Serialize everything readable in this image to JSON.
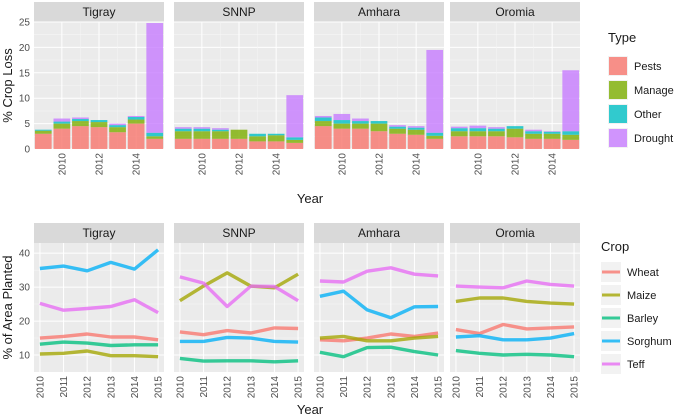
{
  "chart_data": [
    {
      "type": "bar",
      "stacked": true,
      "facet_by": "region",
      "panels": [
        "Tigray",
        "SNNP",
        "Amhara",
        "Oromia"
      ],
      "xlabel": "Year",
      "ylabel": "% Crop Loss",
      "x_ticks": [
        2010,
        2012,
        2014
      ],
      "y_ticks": [
        0,
        5,
        10,
        15,
        20,
        25
      ],
      "ylim": [
        0,
        25
      ],
      "xlim": [
        2008.5,
        2015.5
      ],
      "legend_title": "Type",
      "legend_position": "right",
      "series": [
        {
          "name": "Pests",
          "color": "#f8766d"
        },
        {
          "name": "Manage",
          "color": "#7cae00"
        },
        {
          "name": "Other",
          "color": "#00bfc4"
        },
        {
          "name": "Drought",
          "color": "#c77cff"
        }
      ],
      "years": [
        2009,
        2010,
        2011,
        2012,
        2013,
        2014,
        2015
      ],
      "values": {
        "Tigray": {
          "Pests": [
            3.0,
            4.0,
            4.5,
            4.3,
            3.3,
            5.0,
            2.0
          ],
          "Manage": [
            0.6,
            1.0,
            1.0,
            1.0,
            1.0,
            0.8,
            0.5
          ],
          "Other": [
            0.2,
            0.4,
            0.4,
            0.4,
            0.4,
            0.5,
            0.7
          ],
          "Drought": [
            0.0,
            0.6,
            0.3,
            0.0,
            0.3,
            0.2,
            21.6
          ]
        },
        "SNNP": {
          "Pests": [
            2.0,
            2.0,
            2.0,
            2.0,
            1.5,
            1.5,
            1.2
          ],
          "Manage": [
            1.5,
            1.5,
            1.5,
            1.8,
            1.0,
            1.2,
            0.6
          ],
          "Other": [
            0.5,
            0.5,
            0.3,
            0.0,
            0.5,
            0.3,
            0.5
          ],
          "Drought": [
            0.3,
            0.3,
            0.3,
            0.0,
            0.0,
            0.0,
            8.3
          ]
        },
        "Amhara": {
          "Pests": [
            4.5,
            4.0,
            4.0,
            3.5,
            3.0,
            2.8,
            2.0
          ],
          "Manage": [
            1.0,
            1.0,
            1.0,
            1.5,
            1.0,
            1.0,
            0.6
          ],
          "Other": [
            0.7,
            0.7,
            0.5,
            0.5,
            0.4,
            0.4,
            0.6
          ],
          "Drought": [
            0.3,
            1.2,
            0.5,
            0.0,
            0.3,
            0.3,
            16.3
          ]
        },
        "Oromia": {
          "Pests": [
            2.5,
            2.5,
            2.5,
            2.3,
            2.0,
            2.0,
            1.8
          ],
          "Manage": [
            1.0,
            1.0,
            1.0,
            1.7,
            1.0,
            1.0,
            1.0
          ],
          "Other": [
            0.6,
            0.6,
            0.5,
            0.5,
            0.5,
            0.4,
            0.7
          ],
          "Drought": [
            0.3,
            0.5,
            0.3,
            0.0,
            0.3,
            0.1,
            12.0
          ]
        }
      }
    },
    {
      "type": "line",
      "facet_by": "region",
      "panels": [
        "Tigray",
        "SNNP",
        "Amhara",
        "Oromia"
      ],
      "xlabel": "Year",
      "ylabel": "% of Area Planted",
      "x_ticks": [
        2010,
        2011,
        2012,
        2013,
        2014,
        2015
      ],
      "y_ticks": [
        10,
        20,
        30,
        40
      ],
      "ylim": [
        5,
        43
      ],
      "xlim": [
        2009.75,
        2015.25
      ],
      "legend_title": "Crop",
      "legend_position": "right",
      "series": [
        {
          "name": "Wheat",
          "color": "#f8766d"
        },
        {
          "name": "Maize",
          "color": "#a3a500"
        },
        {
          "name": "Barley",
          "color": "#00bf7d"
        },
        {
          "name": "Sorghum",
          "color": "#00b0f6"
        },
        {
          "name": "Teff",
          "color": "#e76bf3"
        }
      ],
      "years": [
        2010,
        2011,
        2012,
        2013,
        2014,
        2015
      ],
      "values": {
        "Tigray": {
          "Wheat": [
            15.0,
            15.5,
            16.2,
            15.3,
            15.3,
            14.5
          ],
          "Maize": [
            10.3,
            10.5,
            11.2,
            9.8,
            9.8,
            9.5
          ],
          "Barley": [
            13.2,
            13.8,
            13.5,
            12.8,
            13.0,
            13.0
          ],
          "Sorghum": [
            35.5,
            36.2,
            34.8,
            37.3,
            35.3,
            41.0
          ],
          "Teff": [
            25.2,
            23.2,
            23.7,
            24.3,
            26.3,
            22.5
          ]
        },
        "SNNP": {
          "Wheat": [
            16.8,
            16.0,
            17.2,
            16.5,
            18.0,
            17.8
          ],
          "Maize": [
            26.0,
            30.3,
            34.2,
            30.3,
            29.8,
            33.8
          ],
          "Barley": [
            9.0,
            8.2,
            8.3,
            8.3,
            8.0,
            8.3
          ],
          "Sorghum": [
            14.0,
            14.0,
            15.2,
            15.0,
            14.0,
            13.8
          ],
          "Teff": [
            33.0,
            31.2,
            24.3,
            30.3,
            30.2,
            26.0
          ]
        },
        "Amhara": {
          "Wheat": [
            14.5,
            14.2,
            15.0,
            16.2,
            15.5,
            16.5
          ],
          "Maize": [
            15.0,
            15.5,
            14.2,
            14.2,
            15.0,
            15.5
          ],
          "Barley": [
            10.8,
            9.5,
            12.2,
            12.3,
            11.0,
            10.0
          ],
          "Sorghum": [
            27.3,
            28.8,
            23.3,
            21.0,
            24.2,
            24.3
          ],
          "Teff": [
            31.8,
            31.5,
            34.7,
            35.7,
            33.8,
            33.3
          ]
        },
        "Oromia": {
          "Wheat": [
            17.5,
            16.3,
            19.0,
            17.7,
            18.0,
            18.3
          ],
          "Maize": [
            25.8,
            26.8,
            26.8,
            25.8,
            25.3,
            25.0
          ],
          "Barley": [
            11.3,
            10.5,
            10.0,
            10.2,
            10.0,
            9.5
          ],
          "Sorghum": [
            15.3,
            15.7,
            14.5,
            14.5,
            15.0,
            16.3
          ],
          "Teff": [
            30.3,
            30.0,
            29.8,
            31.8,
            30.8,
            30.3
          ]
        }
      }
    }
  ]
}
